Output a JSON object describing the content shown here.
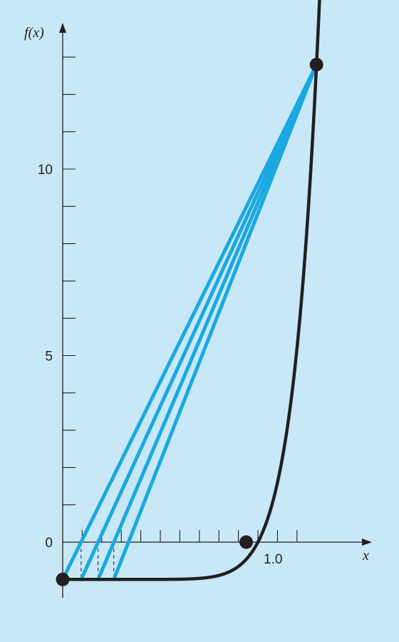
{
  "chart_data": {
    "type": "line",
    "title": "",
    "xlabel": "x",
    "ylabel": "f(x)",
    "xlim": [
      0,
      1.3
    ],
    "ylim": [
      -2,
      13.7
    ],
    "grid": false,
    "legend": "none",
    "x_ticks": [
      0.1,
      0.2,
      0.3,
      0.4,
      0.5,
      0.6,
      0.7,
      0.8,
      0.9,
      1.0,
      1.1,
      1.2
    ],
    "x_tick_labels": [
      {
        "value": 1.0,
        "label": "1.0"
      }
    ],
    "y_ticks": [
      1,
      2,
      3,
      4,
      5,
      6,
      7,
      8,
      9,
      10,
      11,
      12,
      13
    ],
    "y_tick_labels": [
      {
        "value": 0,
        "label": "0"
      },
      {
        "value": 5,
        "label": "5"
      },
      {
        "value": 10,
        "label": "10"
      }
    ],
    "function": {
      "expression": "x^10 - 1",
      "x_range": [
        0,
        1.325
      ],
      "color": "#231f20"
    },
    "points": [
      {
        "x": 0,
        "y": -1
      },
      {
        "x": 0.94,
        "y": 0
      },
      {
        "x": 1.3,
        "y": 12.8
      }
    ],
    "secant_lines": [
      {
        "from": [
          0,
          -1
        ],
        "to": [
          1.3,
          12.8
        ]
      },
      {
        "from": [
          0.0943,
          -1
        ],
        "to": [
          1.3,
          12.8
        ]
      },
      {
        "from": [
          0.1814,
          -1
        ],
        "to": [
          1.3,
          12.8
        ]
      },
      {
        "from": [
          0.2618,
          -1
        ],
        "to": [
          1.3,
          12.8
        ]
      }
    ],
    "estimate_markers": [
      0.0943,
      0.1814,
      0.2618
    ],
    "colors": {
      "background": "#c8e8f8",
      "curve": "#231f20",
      "secant": "#1aa8e0",
      "axis": "#231f20"
    }
  }
}
